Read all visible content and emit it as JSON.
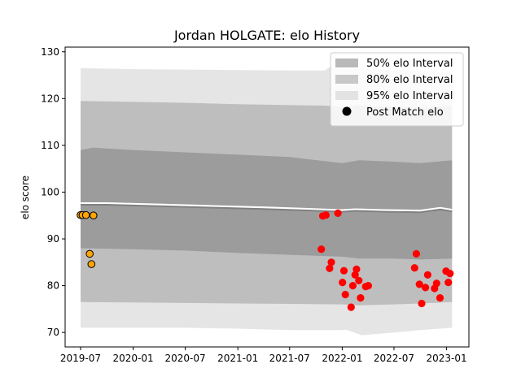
{
  "chart_data": {
    "type": "scatter",
    "title": "Jordan HOLGATE: elo History",
    "xlabel": "",
    "ylabel": "elo score",
    "xlim": [
      "2019-05-08",
      "2023-03-20"
    ],
    "ylim": [
      66.9,
      131.0
    ],
    "y_ticks": [
      70,
      80,
      90,
      100,
      110,
      120,
      130
    ],
    "x_ticks": [
      {
        "date": "2019-07-01",
        "label": "2019-07"
      },
      {
        "date": "2020-01-01",
        "label": "2020-01"
      },
      {
        "date": "2020-07-01",
        "label": "2020-07"
      },
      {
        "date": "2021-01-01",
        "label": "2021-01"
      },
      {
        "date": "2021-07-01",
        "label": "2021-07"
      },
      {
        "date": "2022-01-01",
        "label": "2022-01"
      },
      {
        "date": "2022-07-01",
        "label": "2022-07"
      },
      {
        "date": "2023-01-01",
        "label": "2023-01"
      }
    ],
    "legend_position": "top-right",
    "legend": [
      {
        "label": "50% elo Interval",
        "kind": "band",
        "color": "#7f7f7f",
        "opacity": 0.55
      },
      {
        "label": "80% elo Interval",
        "kind": "band",
        "color": "#9e9e9e",
        "opacity": 0.55
      },
      {
        "label": "95% elo Interval",
        "kind": "band",
        "color": "#cfcfcf",
        "opacity": 0.55
      },
      {
        "label": "Post Match elo",
        "kind": "marker",
        "color": "#000000"
      }
    ],
    "mean_line": {
      "color": "#808080",
      "points": [
        [
          "2019-07-01",
          97.3
        ],
        [
          "2019-10-01",
          97.3
        ],
        [
          "2020-04-01",
          97.0
        ],
        [
          "2020-10-01",
          96.7
        ],
        [
          "2021-04-01",
          96.4
        ],
        [
          "2021-10-10",
          96.0
        ],
        [
          "2022-01-01",
          95.8
        ],
        [
          "2022-02-15",
          96.0
        ],
        [
          "2022-06-01",
          95.8
        ],
        [
          "2022-10-01",
          95.7
        ],
        [
          "2022-12-10",
          96.3
        ],
        [
          "2023-01-20",
          95.9
        ]
      ]
    },
    "bands": [
      {
        "name": "95% elo Interval",
        "color": "#cfcfcf",
        "opacity": 0.55,
        "upper": [
          [
            "2019-07-01",
            126.5
          ],
          [
            "2020-01-01",
            126.3
          ],
          [
            "2020-07-01",
            126.2
          ],
          [
            "2021-01-01",
            126.1
          ],
          [
            "2021-07-01",
            126.0
          ],
          [
            "2021-11-01",
            126.0
          ],
          [
            "2021-11-15",
            126.6
          ],
          [
            "2022-03-01",
            126.3
          ],
          [
            "2022-07-01",
            126.0
          ],
          [
            "2022-10-01",
            126.0
          ],
          [
            "2023-01-20",
            125.5
          ]
        ],
        "lower": [
          [
            "2019-07-01",
            71.0
          ],
          [
            "2020-01-01",
            71.0
          ],
          [
            "2020-07-01",
            71.0
          ],
          [
            "2021-01-01",
            70.8
          ],
          [
            "2021-07-01",
            70.5
          ],
          [
            "2022-01-01",
            70.5
          ],
          [
            "2022-01-15",
            70.6
          ],
          [
            "2022-03-10",
            69.4
          ],
          [
            "2022-07-01",
            70.0
          ],
          [
            "2022-10-01",
            70.5
          ],
          [
            "2023-01-20",
            71.0
          ]
        ]
      },
      {
        "name": "80% elo Interval",
        "color": "#9e9e9e",
        "opacity": 0.55,
        "upper": [
          [
            "2019-07-01",
            119.5
          ],
          [
            "2020-01-01",
            119.3
          ],
          [
            "2020-07-01",
            119.1
          ],
          [
            "2021-01-01",
            118.8
          ],
          [
            "2021-07-01",
            118.6
          ],
          [
            "2021-11-01",
            118.5
          ],
          [
            "2022-01-01",
            118.2
          ],
          [
            "2022-03-01",
            118.6
          ],
          [
            "2022-07-01",
            118.2
          ],
          [
            "2022-10-01",
            118.0
          ],
          [
            "2023-01-20",
            118.5
          ]
        ],
        "lower": [
          [
            "2019-07-01",
            76.5
          ],
          [
            "2020-01-01",
            76.4
          ],
          [
            "2020-07-01",
            76.3
          ],
          [
            "2021-01-01",
            76.2
          ],
          [
            "2021-07-01",
            76.1
          ],
          [
            "2022-01-01",
            76.0
          ],
          [
            "2022-03-01",
            75.8
          ],
          [
            "2022-07-01",
            76.0
          ],
          [
            "2022-10-01",
            76.2
          ],
          [
            "2023-01-20",
            76.5
          ]
        ]
      },
      {
        "name": "50% elo Interval",
        "color": "#7f7f7f",
        "opacity": 0.55,
        "upper": [
          [
            "2019-07-01",
            109.0
          ],
          [
            "2019-08-15",
            109.5
          ],
          [
            "2020-01-01",
            109.0
          ],
          [
            "2020-07-01",
            108.5
          ],
          [
            "2021-01-01",
            108.0
          ],
          [
            "2021-07-01",
            107.5
          ],
          [
            "2022-01-01",
            106.2
          ],
          [
            "2022-03-01",
            106.8
          ],
          [
            "2022-07-01",
            106.5
          ],
          [
            "2022-10-01",
            106.2
          ],
          [
            "2023-01-20",
            106.8
          ]
        ],
        "lower": [
          [
            "2019-07-01",
            88.0
          ],
          [
            "2020-01-01",
            87.8
          ],
          [
            "2020-07-01",
            87.5
          ],
          [
            "2021-01-01",
            87.0
          ],
          [
            "2021-07-01",
            86.6
          ],
          [
            "2022-01-01",
            86.2
          ],
          [
            "2022-03-01",
            85.8
          ],
          [
            "2022-07-01",
            85.8
          ],
          [
            "2022-10-01",
            85.6
          ],
          [
            "2023-01-20",
            85.8
          ]
        ]
      }
    ],
    "series": [
      {
        "color": "#ffa500",
        "points": [
          [
            "2019-07-01",
            95.1
          ],
          [
            "2019-07-08",
            95.1
          ],
          [
            "2019-07-20",
            95.1
          ],
          [
            "2019-08-02",
            86.8
          ],
          [
            "2019-08-08",
            84.6
          ],
          [
            "2019-08-15",
            95.0
          ]
        ]
      },
      {
        "color": "#ff0000",
        "points": [
          [
            "2021-10-20",
            87.8
          ],
          [
            "2021-10-25",
            94.9
          ],
          [
            "2021-11-05",
            95.1
          ],
          [
            "2021-11-18",
            83.7
          ],
          [
            "2021-11-24",
            85.0
          ],
          [
            "2021-12-17",
            95.5
          ],
          [
            "2022-01-02",
            80.7
          ],
          [
            "2022-01-07",
            83.2
          ],
          [
            "2022-01-12",
            78.1
          ],
          [
            "2022-02-01",
            75.4
          ],
          [
            "2022-02-07",
            80.0
          ],
          [
            "2022-02-15",
            82.3
          ],
          [
            "2022-02-20",
            83.5
          ],
          [
            "2022-02-28",
            81.1
          ],
          [
            "2022-03-06",
            77.4
          ],
          [
            "2022-03-24",
            79.8
          ],
          [
            "2022-04-02",
            80.0
          ],
          [
            "2022-09-11",
            83.8
          ],
          [
            "2022-09-17",
            86.8
          ],
          [
            "2022-09-28",
            80.3
          ],
          [
            "2022-10-06",
            76.2
          ],
          [
            "2022-10-19",
            79.6
          ],
          [
            "2022-10-27",
            82.3
          ],
          [
            "2022-11-20",
            79.4
          ],
          [
            "2022-11-27",
            80.5
          ],
          [
            "2022-12-09",
            77.4
          ],
          [
            "2022-12-30",
            83.1
          ],
          [
            "2023-01-07",
            80.7
          ],
          [
            "2023-01-13",
            82.6
          ]
        ]
      }
    ]
  }
}
